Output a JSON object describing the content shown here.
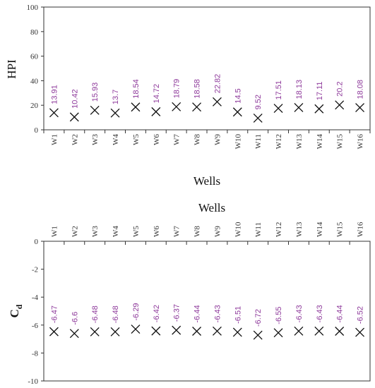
{
  "chart_data": [
    {
      "type": "scatter",
      "marker": "x",
      "categories": [
        "W1",
        "W2",
        "W3",
        "W4",
        "W5",
        "W6",
        "W7",
        "W8",
        "W9",
        "W10",
        "W11",
        "W12",
        "W13",
        "W14",
        "W15",
        "W16"
      ],
      "values": [
        13.91,
        10.42,
        15.93,
        13.7,
        18.54,
        14.72,
        18.79,
        18.58,
        22.82,
        14.5,
        9.52,
        17.51,
        18.13,
        17.11,
        20.2,
        18.08
      ],
      "data_labels": [
        "13.91",
        "10.42",
        "15.93",
        "13.7",
        "18.54",
        "14.72",
        "18.79",
        "18.58",
        "22.82",
        "14.5",
        "9.52",
        "17.51",
        "18.13",
        "17.11",
        "20.2",
        "18.08"
      ],
      "xlabel": "Wells",
      "ylabel": "HPI",
      "ylim": [
        0,
        100
      ],
      "yticks": [
        "0",
        "20",
        "40",
        "60",
        "80",
        "100"
      ],
      "x_axis_position": "bottom",
      "grid": false,
      "label_color": "#8e3a9b",
      "marker_color": "#111111"
    },
    {
      "type": "scatter",
      "marker": "x",
      "categories": [
        "W1",
        "W2",
        "W3",
        "W4",
        "W5",
        "W6",
        "W7",
        "W8",
        "W9",
        "W10",
        "W11",
        "W12",
        "W13",
        "W14",
        "W15",
        "W16"
      ],
      "values": [
        -6.47,
        -6.6,
        -6.48,
        -6.48,
        -6.29,
        -6.42,
        -6.37,
        -6.44,
        -6.43,
        -6.51,
        -6.72,
        -6.55,
        -6.43,
        -6.43,
        -6.44,
        -6.52
      ],
      "data_labels": [
        "-6.47",
        "-6.6",
        "-6.48",
        "-6.48",
        "-6.29",
        "-6.42",
        "-6.37",
        "-6.44",
        "-6.43",
        "-6.51",
        "-6.72",
        "-6.55",
        "-6.43",
        "-6.43",
        "-6.44",
        "-6.52"
      ],
      "xlabel": "Wells",
      "ylabel_main": "C",
      "ylabel_sub": "d",
      "ylim": [
        -10,
        0
      ],
      "yticks": [
        "0",
        "-2",
        "-4",
        "-6",
        "-8",
        "-10"
      ],
      "x_axis_position": "top",
      "grid": false,
      "label_color": "#8e3a9b",
      "marker_color": "#111111"
    }
  ]
}
